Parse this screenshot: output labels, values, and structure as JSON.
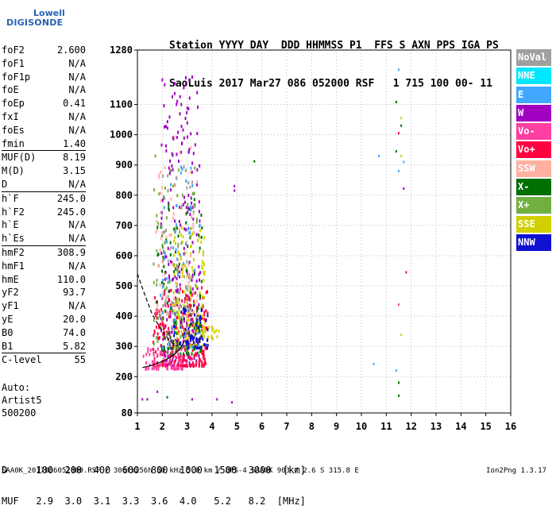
{
  "logo": {
    "top": "Lowell",
    "bottom": "DIGISONDE"
  },
  "header": {
    "line1": "Station YYYY DAY  DDD HHMMSS P1  FFS S AXN PPS IGA PS",
    "line2": "SaoLuis 2017 Mar27 086 052000 RSF   1 715 100 00- 11"
  },
  "params": [
    {
      "name": "foF2",
      "value": "2.600",
      "sep": false
    },
    {
      "name": "foF1",
      "value": "N/A",
      "sep": false
    },
    {
      "name": "foF1p",
      "value": "N/A",
      "sep": false
    },
    {
      "name": "foE",
      "value": "N/A",
      "sep": false
    },
    {
      "name": "foEp",
      "value": "0.41",
      "sep": false
    },
    {
      "name": "fxI",
      "value": "N/A",
      "sep": false
    },
    {
      "name": "foEs",
      "value": "N/A",
      "sep": false
    },
    {
      "name": "fmin",
      "value": "1.40",
      "sep": false
    },
    {
      "name": "MUF(D)",
      "value": "8.19",
      "sep": true
    },
    {
      "name": "M(D)",
      "value": "3.15",
      "sep": false
    },
    {
      "name": "D",
      "value": "N/A",
      "sep": false
    },
    {
      "name": "h`F",
      "value": "245.0",
      "sep": true
    },
    {
      "name": "h`F2",
      "value": "245.0",
      "sep": false
    },
    {
      "name": "h`E",
      "value": "N/A",
      "sep": false
    },
    {
      "name": "h`Es",
      "value": "N/A",
      "sep": false
    },
    {
      "name": "hmF2",
      "value": "308.9",
      "sep": true
    },
    {
      "name": "hmF1",
      "value": "N/A",
      "sep": false
    },
    {
      "name": "hmE",
      "value": "110.0",
      "sep": false
    },
    {
      "name": "yF2",
      "value": "93.7",
      "sep": false
    },
    {
      "name": "yF1",
      "value": "N/A",
      "sep": false
    },
    {
      "name": "yE",
      "value": "20.0",
      "sep": false
    },
    {
      "name": "B0",
      "value": "74.0",
      "sep": false
    },
    {
      "name": "B1",
      "value": "5.82",
      "sep": false
    },
    {
      "name": "C-level",
      "value": "55",
      "sep": true
    }
  ],
  "auto": {
    "line1": "Auto:",
    "line2": "Artist5",
    "line3": "500200"
  },
  "legend": [
    {
      "label": "NoVal",
      "color": "#a0a0a0"
    },
    {
      "label": "NNE",
      "color": "#00e8ff"
    },
    {
      "label": "E",
      "color": "#40a8ff"
    },
    {
      "label": "W",
      "color": "#a000c0"
    },
    {
      "label": "Vo-",
      "color": "#ff40a0"
    },
    {
      "label": "Vo+",
      "color": "#ff0040"
    },
    {
      "label": "SSW",
      "color": "#ffb0a0"
    },
    {
      "label": "X-",
      "color": "#007000"
    },
    {
      "label": "X+",
      "color": "#70b040"
    },
    {
      "label": "SSE",
      "color": "#d0d000"
    },
    {
      "label": "NNW",
      "color": "#1010d0"
    }
  ],
  "bottom": {
    "line1": "D     100  200  400  600  800  1000  1500  3000  [km]",
    "line2": "MUF   2.9  3.0  3.1  3.3  3.6  4.0   5.2   8.2  [MHz]"
  },
  "footer": {
    "left": "SAA0K_2017086052000.RSF / 300fx256h 50 kHz 5.0 km / DPS-4 SAA0K 903 / 2.6 S 315.8 E",
    "right": "Ion2Png 1.3.17"
  },
  "chart_data": {
    "type": "scatter",
    "xlim": [
      1,
      16
    ],
    "ylim": [
      80,
      1280
    ],
    "x_ticks": [
      "1",
      "2",
      "3",
      "4",
      "5",
      "6",
      "7",
      "8",
      "9",
      "10",
      "11",
      "12",
      "13",
      "14",
      "15",
      "16"
    ],
    "y_ticks": [
      "80",
      "200",
      "300",
      "400",
      "500",
      "600",
      "700",
      "800",
      "900",
      "1000",
      "1100",
      "1280"
    ],
    "grid": true,
    "legend_placement": "right",
    "trace_clusters": [
      {
        "x_range": [
          1.9,
          3.5
        ],
        "y_range": [
          240,
          1200
        ],
        "color": "#a000c0",
        "n": 240
      },
      {
        "x_range": [
          1.6,
          3.8
        ],
        "y_range": [
          240,
          500
        ],
        "color": "#ff0040",
        "n": 260
      },
      {
        "x_range": [
          2.4,
          3.7
        ],
        "y_range": [
          300,
          700
        ],
        "color": "#d0d000",
        "n": 160
      },
      {
        "x_range": [
          2.3,
          3.8
        ],
        "y_range": [
          300,
          450
        ],
        "color": "#1010d0",
        "n": 90
      },
      {
        "x_range": [
          1.7,
          3.6
        ],
        "y_range": [
          280,
          800
        ],
        "color": "#007000",
        "n": 110
      },
      {
        "x_range": [
          1.6,
          3.4
        ],
        "y_range": [
          300,
          950
        ],
        "color": "#70b040",
        "n": 90
      },
      {
        "x_range": [
          1.7,
          3.4
        ],
        "y_range": [
          400,
          1000
        ],
        "color": "#ffb0a0",
        "n": 70
      },
      {
        "x_range": [
          1.9,
          3.5
        ],
        "y_range": [
          300,
          900
        ],
        "color": "#40a8ff",
        "n": 45
      },
      {
        "x_range": [
          1.9,
          3.3
        ],
        "y_range": [
          400,
          900
        ],
        "color": "#a0a0a0",
        "n": 45
      },
      {
        "x_range": [
          1.2,
          2.8
        ],
        "y_range": [
          230,
          300
        ],
        "color": "#ff40a0",
        "n": 70
      },
      {
        "x_range": [
          3.5,
          4.4
        ],
        "y_range": [
          330,
          370
        ],
        "color": "#d0d000",
        "n": 20
      }
    ],
    "isolated_points": [
      {
        "x": 11.5,
        "y": 1215,
        "color": "#40a8ff"
      },
      {
        "x": 11.4,
        "y": 1108,
        "color": "#007000"
      },
      {
        "x": 11.6,
        "y": 1055,
        "color": "#d0d000"
      },
      {
        "x": 11.6,
        "y": 1030,
        "color": "#007000"
      },
      {
        "x": 11.5,
        "y": 1005,
        "color": "#ff0040"
      },
      {
        "x": 11.4,
        "y": 945,
        "color": "#007000"
      },
      {
        "x": 11.6,
        "y": 930,
        "color": "#d0d000"
      },
      {
        "x": 11.7,
        "y": 910,
        "color": "#40a8ff"
      },
      {
        "x": 11.5,
        "y": 880,
        "color": "#40a8ff"
      },
      {
        "x": 11.7,
        "y": 822,
        "color": "#a000c0"
      },
      {
        "x": 11.8,
        "y": 545,
        "color": "#ff0040"
      },
      {
        "x": 11.5,
        "y": 438,
        "color": "#ff40a0"
      },
      {
        "x": 11.6,
        "y": 338,
        "color": "#d0d000"
      },
      {
        "x": 11.4,
        "y": 220,
        "color": "#40a8ff"
      },
      {
        "x": 11.5,
        "y": 180,
        "color": "#007000"
      },
      {
        "x": 11.5,
        "y": 137,
        "color": "#007000"
      },
      {
        "x": 10.7,
        "y": 930,
        "color": "#40a8ff"
      },
      {
        "x": 10.5,
        "y": 242,
        "color": "#40a8ff"
      },
      {
        "x": 5.7,
        "y": 912,
        "color": "#007000"
      },
      {
        "x": 4.9,
        "y": 815,
        "color": "#a000c0"
      },
      {
        "x": 4.9,
        "y": 830,
        "color": "#a000c0"
      },
      {
        "x": 4.8,
        "y": 115,
        "color": "#a000c0"
      },
      {
        "x": 1.2,
        "y": 125,
        "color": "#a000c0"
      },
      {
        "x": 1.4,
        "y": 125,
        "color": "#a000c0"
      },
      {
        "x": 2.2,
        "y": 132,
        "color": "#007000"
      },
      {
        "x": 3.2,
        "y": 125,
        "color": "#a000c0"
      },
      {
        "x": 4.2,
        "y": 125,
        "color": "#a000c0"
      },
      {
        "x": 1.8,
        "y": 150,
        "color": "#a000c0"
      }
    ],
    "profile_curve": [
      [
        1.0,
        540
      ],
      [
        1.3,
        470
      ],
      [
        1.6,
        405
      ],
      [
        2.0,
        350
      ],
      [
        2.3,
        318
      ],
      [
        2.6,
        300
      ]
    ],
    "trace_curve": [
      [
        1.2,
        230
      ],
      [
        1.6,
        238
      ],
      [
        2.0,
        250
      ],
      [
        2.4,
        268
      ],
      [
        2.7,
        290
      ],
      [
        2.9,
        320
      ]
    ]
  }
}
